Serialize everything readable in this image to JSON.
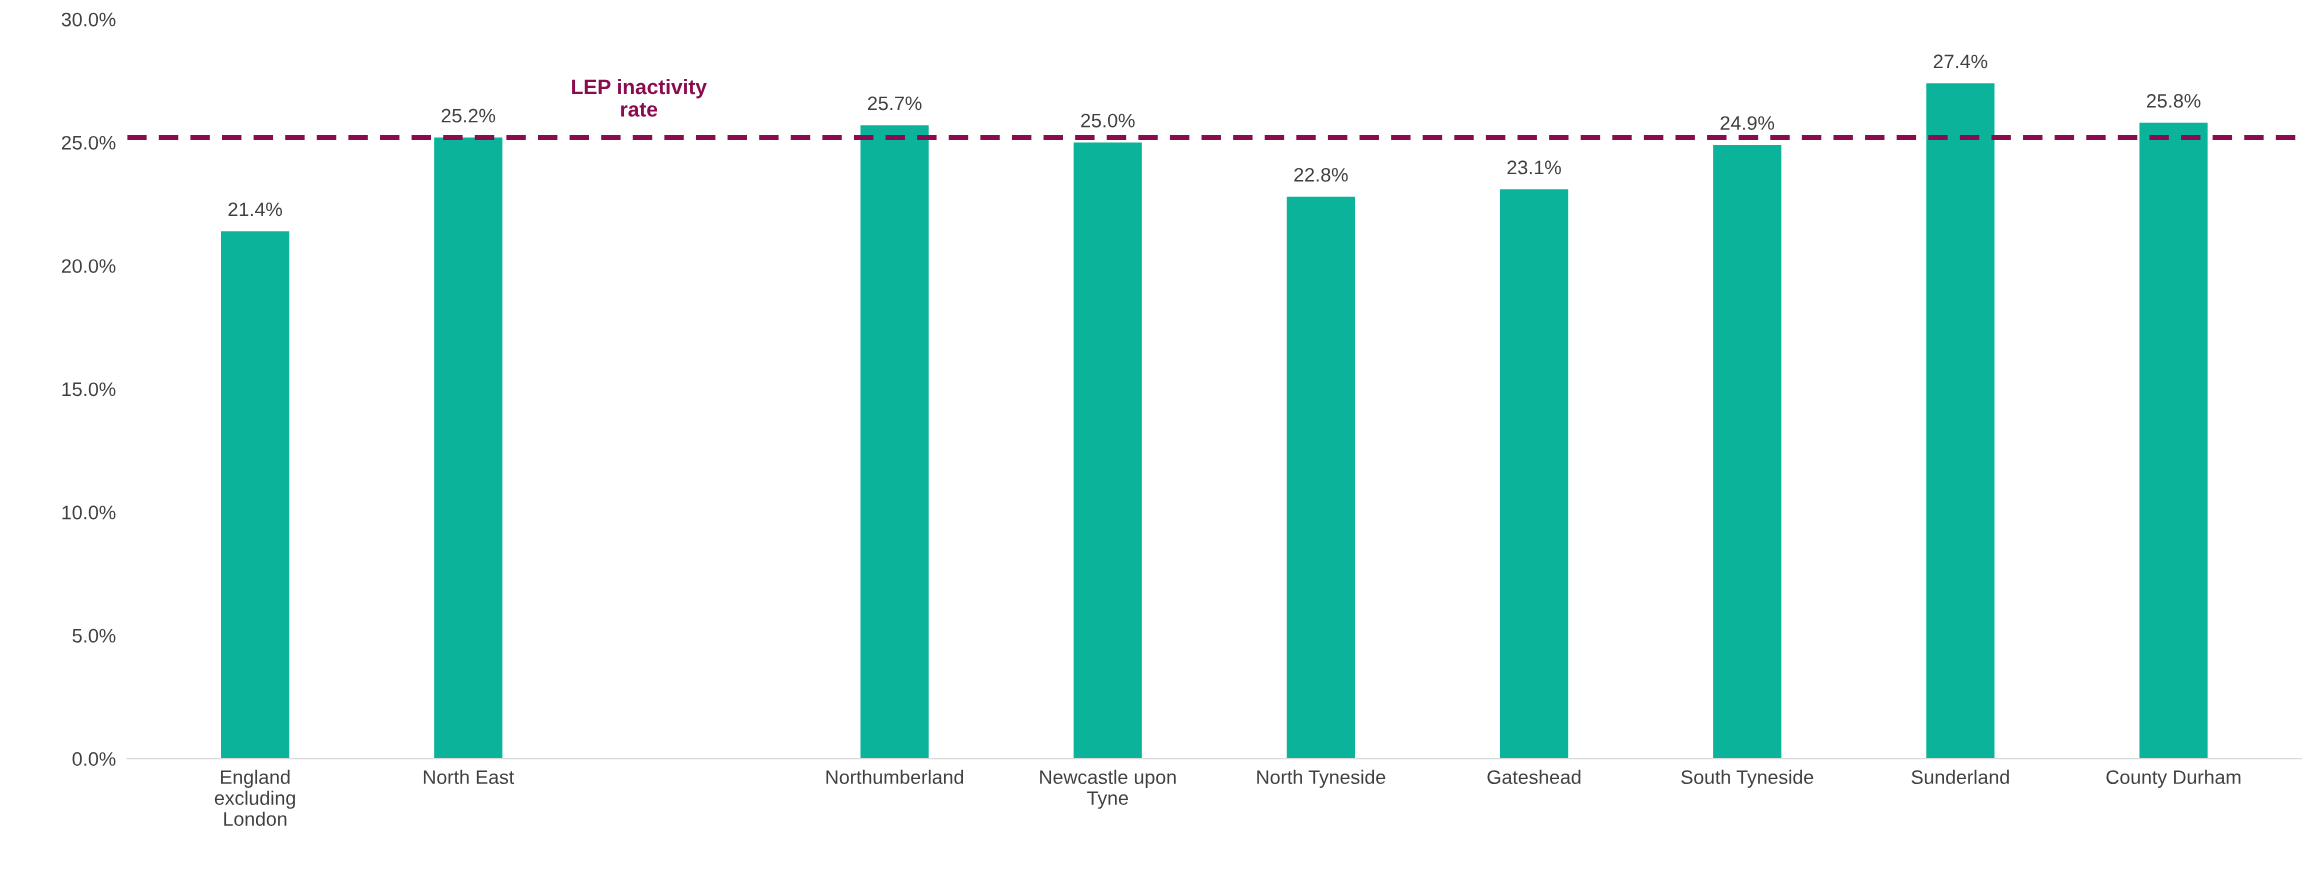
{
  "chart_data": {
    "type": "bar",
    "categories": [
      "England excluding London",
      "North East",
      null,
      "Northumberland",
      "Newcastle upon Tyne",
      "North Tyneside",
      "Gateshead",
      "South Tyneside",
      "Sunderland",
      "County Durham"
    ],
    "values": [
      21.4,
      25.2,
      null,
      25.7,
      25.0,
      22.8,
      23.1,
      24.9,
      27.4,
      25.8
    ],
    "value_labels": [
      "21.4%",
      "25.2%",
      null,
      "25.7%",
      "25.0%",
      "22.8%",
      "23.1%",
      "24.9%",
      "27.4%",
      "25.8%"
    ],
    "color": "#0bb39a",
    "ylim": [
      0,
      30
    ],
    "yticks": [
      {
        "value": 0,
        "label": "0.0%"
      },
      {
        "value": 5,
        "label": "5.0%"
      },
      {
        "value": 10,
        "label": "10.0%"
      },
      {
        "value": 15,
        "label": "15.0%"
      },
      {
        "value": 20,
        "label": "20.0%"
      },
      {
        "value": 25,
        "label": "25.0%"
      },
      {
        "value": 30,
        "label": "30.0%"
      }
    ],
    "ref_lines": [
      {
        "axis": "y",
        "value": 25.2,
        "label": "LEP inactivity rate",
        "color": "#8b0b4f",
        "line_style": "dashed"
      }
    ],
    "grid": false,
    "legend": false
  }
}
